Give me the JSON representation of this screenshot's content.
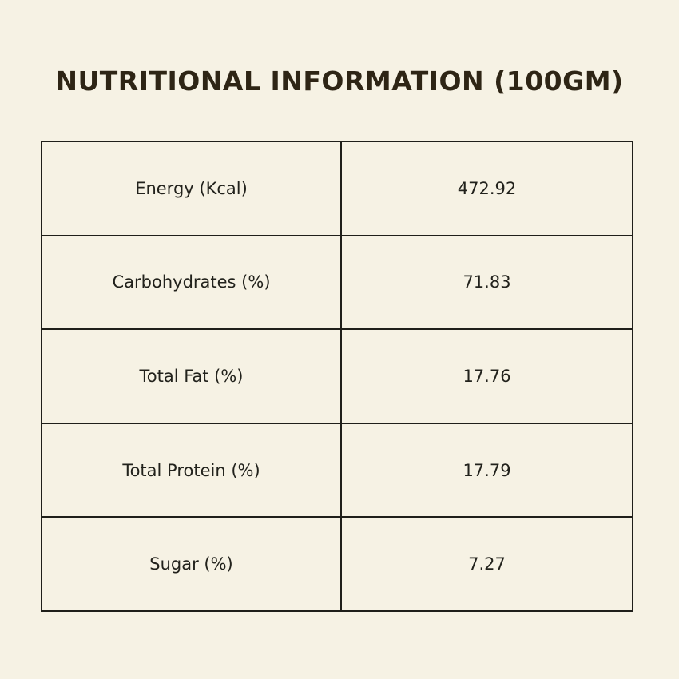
{
  "title": "NUTRITIONAL INFORMATION (100GM)",
  "rows": [
    {
      "label": "Energy (Kcal)",
      "value": "472.92"
    },
    {
      "label": "Carbohydrates (%)",
      "value": "71.83"
    },
    {
      "label": "Total Fat (%)",
      "value": "17.76"
    },
    {
      "label": "Total Protein (%)",
      "value": "17.79"
    },
    {
      "label": "Sugar (%)",
      "value": "7.27"
    }
  ],
  "colors": {
    "background": "#f6f2e4",
    "title": "#2e2515",
    "border": "#1f1f1a",
    "text": "#22221c"
  }
}
